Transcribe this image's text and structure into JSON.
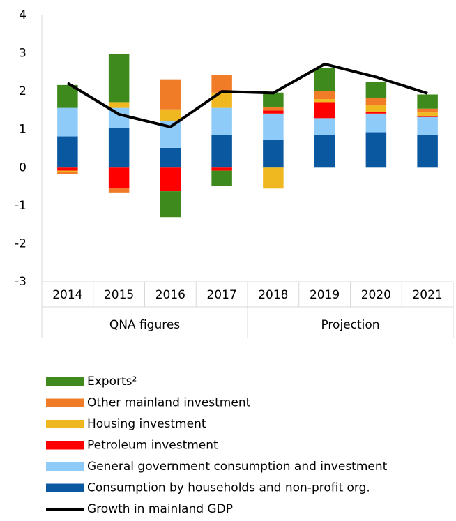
{
  "chart_data": {
    "type": "bar",
    "stacked": true,
    "categories": [
      "2014",
      "2015",
      "2016",
      "2017",
      "2018",
      "2019",
      "2020",
      "2021"
    ],
    "group_labels": [
      "QNA figures",
      "Projection"
    ],
    "ylim": [
      -3,
      4
    ],
    "yticks": [
      -3,
      -2,
      -1,
      0,
      1,
      2,
      3,
      4
    ],
    "grid": false,
    "series": [
      {
        "name": "Consumption by households and non-profit org.",
        "color": "#0a58a0",
        "values": [
          0.82,
          1.05,
          0.52,
          0.85,
          0.72,
          0.85,
          0.93,
          0.85
        ]
      },
      {
        "name": "General government consumption and investment",
        "color": "#8ecbf8",
        "values": [
          0.75,
          0.52,
          0.7,
          0.72,
          0.7,
          0.45,
          0.49,
          0.48
        ]
      },
      {
        "name": "Petroleum investment",
        "color": "#ff0000",
        "values": [
          -0.08,
          -0.55,
          -0.62,
          -0.08,
          0.08,
          0.42,
          0.05,
          0.02
        ]
      },
      {
        "name": "Housing investment",
        "color": "#f0b820",
        "values": [
          -0.04,
          0.15,
          0.31,
          0.4,
          -0.55,
          0.08,
          0.18,
          0.1
        ]
      },
      {
        "name": "Other mainland investment",
        "color": "#f07c28",
        "values": [
          -0.04,
          -0.12,
          0.79,
          0.46,
          0.1,
          0.22,
          0.18,
          0.1
        ]
      },
      {
        "name": "Exports²",
        "color": "#3f8a1c",
        "values": [
          0.6,
          1.26,
          -0.68,
          -0.4,
          0.37,
          0.6,
          0.42,
          0.37
        ]
      },
      {
        "name": "Growth in mainland GDP",
        "type": "line",
        "color": "#000000",
        "values": [
          2.22,
          1.4,
          1.07,
          2.0,
          1.96,
          2.72,
          2.38,
          1.95
        ]
      }
    ]
  }
}
